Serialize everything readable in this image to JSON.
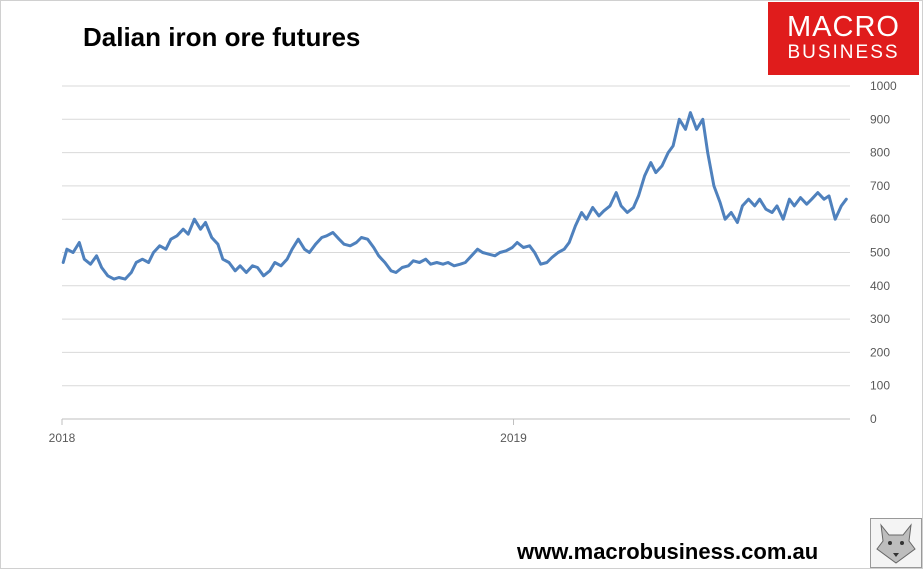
{
  "title": "Dalian iron ore futures",
  "logo": {
    "line1": "MACRO",
    "line2": "BUSINESS"
  },
  "footer_url": "www.macrobusiness.com.au",
  "colors": {
    "line": "#4f81bd",
    "logo_bg": "#e01c1c",
    "grid": "#d9d9d9"
  },
  "chart_data": {
    "type": "line",
    "title": "Dalian iron ore futures",
    "xlabel": "",
    "ylabel": "",
    "x_ticks": [
      "2018",
      "2019"
    ],
    "y_ticks": [
      0,
      100,
      200,
      300,
      400,
      500,
      600,
      700,
      800,
      900,
      1000
    ],
    "ylim": [
      0,
      1000
    ],
    "xlim": [
      "2018-01-01",
      "2019-09-30"
    ],
    "y_axis_side": "right",
    "grid": true,
    "legend": "none",
    "series": [
      {
        "values": [
          [
            "2018-01-02",
            470
          ],
          [
            "2018-01-05",
            510
          ],
          [
            "2018-01-10",
            500
          ],
          [
            "2018-01-15",
            530
          ],
          [
            "2018-01-19",
            480
          ],
          [
            "2018-01-24",
            465
          ],
          [
            "2018-01-29",
            490
          ],
          [
            "2018-02-02",
            455
          ],
          [
            "2018-02-07",
            430
          ],
          [
            "2018-02-12",
            420
          ],
          [
            "2018-02-16",
            425
          ],
          [
            "2018-02-21",
            420
          ],
          [
            "2018-02-26",
            440
          ],
          [
            "2018-03-02",
            470
          ],
          [
            "2018-03-07",
            480
          ],
          [
            "2018-03-12",
            470
          ],
          [
            "2018-03-16",
            500
          ],
          [
            "2018-03-21",
            520
          ],
          [
            "2018-03-26",
            510
          ],
          [
            "2018-03-30",
            540
          ],
          [
            "2018-04-04",
            550
          ],
          [
            "2018-04-09",
            570
          ],
          [
            "2018-04-13",
            555
          ],
          [
            "2018-04-18",
            600
          ],
          [
            "2018-04-23",
            570
          ],
          [
            "2018-04-27",
            590
          ],
          [
            "2018-05-02",
            545
          ],
          [
            "2018-05-07",
            525
          ],
          [
            "2018-05-11",
            480
          ],
          [
            "2018-05-16",
            470
          ],
          [
            "2018-05-21",
            445
          ],
          [
            "2018-05-25",
            460
          ],
          [
            "2018-05-30",
            440
          ],
          [
            "2018-06-04",
            460
          ],
          [
            "2018-06-08",
            455
          ],
          [
            "2018-06-13",
            430
          ],
          [
            "2018-06-18",
            445
          ],
          [
            "2018-06-22",
            470
          ],
          [
            "2018-06-27",
            460
          ],
          [
            "2018-07-02",
            480
          ],
          [
            "2018-07-06",
            510
          ],
          [
            "2018-07-11",
            540
          ],
          [
            "2018-07-16",
            510
          ],
          [
            "2018-07-20",
            500
          ],
          [
            "2018-07-25",
            525
          ],
          [
            "2018-07-30",
            545
          ],
          [
            "2018-08-03",
            550
          ],
          [
            "2018-08-08",
            560
          ],
          [
            "2018-08-13",
            540
          ],
          [
            "2018-08-17",
            525
          ],
          [
            "2018-08-22",
            520
          ],
          [
            "2018-08-27",
            530
          ],
          [
            "2018-08-31",
            545
          ],
          [
            "2018-09-05",
            540
          ],
          [
            "2018-09-10",
            515
          ],
          [
            "2018-09-14",
            490
          ],
          [
            "2018-09-19",
            470
          ],
          [
            "2018-09-24",
            445
          ],
          [
            "2018-09-28",
            440
          ],
          [
            "2018-10-03",
            455
          ],
          [
            "2018-10-08",
            460
          ],
          [
            "2018-10-12",
            475
          ],
          [
            "2018-10-17",
            470
          ],
          [
            "2018-10-22",
            480
          ],
          [
            "2018-10-26",
            465
          ],
          [
            "2018-10-31",
            470
          ],
          [
            "2018-11-05",
            465
          ],
          [
            "2018-11-09",
            470
          ],
          [
            "2018-11-14",
            460
          ],
          [
            "2018-11-19",
            465
          ],
          [
            "2018-11-23",
            470
          ],
          [
            "2018-11-28",
            490
          ],
          [
            "2018-12-03",
            510
          ],
          [
            "2018-12-07",
            500
          ],
          [
            "2018-12-12",
            495
          ],
          [
            "2018-12-17",
            490
          ],
          [
            "2018-12-21",
            500
          ],
          [
            "2018-12-26",
            505
          ],
          [
            "2018-12-31",
            515
          ],
          [
            "2019-01-04",
            530
          ],
          [
            "2019-01-09",
            515
          ],
          [
            "2019-01-14",
            520
          ],
          [
            "2019-01-18",
            500
          ],
          [
            "2019-01-23",
            465
          ],
          [
            "2019-01-28",
            470
          ],
          [
            "2019-02-01",
            485
          ],
          [
            "2019-02-06",
            500
          ],
          [
            "2019-02-11",
            510
          ],
          [
            "2019-02-15",
            530
          ],
          [
            "2019-02-20",
            580
          ],
          [
            "2019-02-25",
            620
          ],
          [
            "2019-03-01",
            600
          ],
          [
            "2019-03-06",
            635
          ],
          [
            "2019-03-11",
            610
          ],
          [
            "2019-03-15",
            625
          ],
          [
            "2019-03-20",
            640
          ],
          [
            "2019-03-25",
            680
          ],
          [
            "2019-03-29",
            640
          ],
          [
            "2019-04-03",
            620
          ],
          [
            "2019-04-08",
            635
          ],
          [
            "2019-04-12",
            670
          ],
          [
            "2019-04-17",
            730
          ],
          [
            "2019-04-22",
            770
          ],
          [
            "2019-04-26",
            740
          ],
          [
            "2019-05-01",
            760
          ],
          [
            "2019-05-06",
            800
          ],
          [
            "2019-05-10",
            820
          ],
          [
            "2019-05-15",
            900
          ],
          [
            "2019-05-20",
            870
          ],
          [
            "2019-05-24",
            920
          ],
          [
            "2019-05-29",
            870
          ],
          [
            "2019-06-03",
            900
          ],
          [
            "2019-06-07",
            800
          ],
          [
            "2019-06-12",
            700
          ],
          [
            "2019-06-17",
            650
          ],
          [
            "2019-06-21",
            600
          ],
          [
            "2019-06-26",
            620
          ],
          [
            "2019-07-01",
            590
          ],
          [
            "2019-07-05",
            640
          ],
          [
            "2019-07-10",
            660
          ],
          [
            "2019-07-15",
            640
          ],
          [
            "2019-07-19",
            660
          ],
          [
            "2019-07-24",
            630
          ],
          [
            "2019-07-29",
            620
          ],
          [
            "2019-08-02",
            640
          ],
          [
            "2019-08-07",
            600
          ],
          [
            "2019-08-12",
            660
          ],
          [
            "2019-08-16",
            640
          ],
          [
            "2019-08-21",
            665
          ],
          [
            "2019-08-26",
            645
          ],
          [
            "2019-08-30",
            660
          ],
          [
            "2019-09-04",
            680
          ],
          [
            "2019-09-09",
            660
          ],
          [
            "2019-09-13",
            670
          ],
          [
            "2019-09-18",
            600
          ],
          [
            "2019-09-23",
            640
          ],
          [
            "2019-09-27",
            660
          ]
        ]
      }
    ]
  }
}
